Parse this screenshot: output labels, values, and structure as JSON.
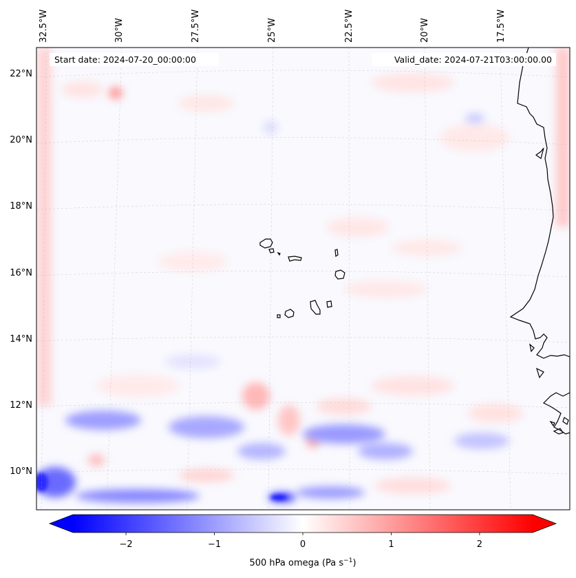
{
  "map": {
    "start_date": "Start date: 2024-07-20_00:00:00",
    "valid_date": "Valid_date: 2024-07-21T03:00:00.00",
    "lon_labels": [
      "32.5°W",
      "30°W",
      "27.5°W",
      "25°W",
      "22.5°W",
      "20°W",
      "17.5°W"
    ],
    "lat_labels": [
      "22°N",
      "20°N",
      "18°N",
      "16°N",
      "14°N",
      "12°N",
      "10°N"
    ],
    "region": "Cabo Verde / West Africa coast"
  },
  "colorbar": {
    "ticks": [
      "−2",
      "−1",
      "0",
      "1",
      "2"
    ],
    "tick_values": [
      -2,
      -1,
      0,
      1,
      2
    ],
    "vmin": -2.6,
    "vmax": 2.6,
    "label_main": "500 hPa omega (Pa s",
    "label_exp": "−1",
    "label_close": ")",
    "colors": {
      "low": "#0000ff",
      "mid": "#ffffff",
      "high": "#ff0000"
    }
  }
}
